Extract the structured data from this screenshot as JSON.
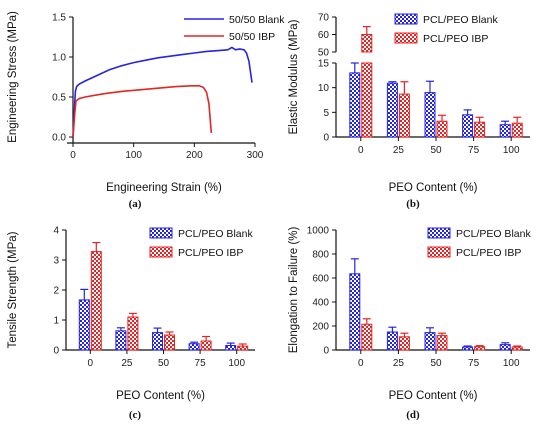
{
  "colors": {
    "blank": "#2424e6",
    "ibp": "#e62424",
    "axis": "#111111"
  },
  "chart_data": [
    {
      "id": "a",
      "type": "line",
      "panel_label": "(a)",
      "xlabel": "Engineering Strain (%)",
      "ylabel": "Engineering Stress (MPa)",
      "xlim": [
        0,
        300
      ],
      "ylim": [
        0,
        1.5
      ],
      "xticks": [
        0,
        100,
        200,
        300
      ],
      "yticks": [
        0.0,
        0.5,
        1.0,
        1.5
      ],
      "ytick_labels": [
        "0.0",
        "0.5",
        "1.0",
        "1.5"
      ],
      "legend_position": "top-right",
      "series": [
        {
          "name": "50/50 Blank",
          "color": "blank",
          "points": [
            [
              0,
              0
            ],
            [
              2,
              0.3
            ],
            [
              4,
              0.57
            ],
            [
              6,
              0.63
            ],
            [
              10,
              0.66
            ],
            [
              20,
              0.7
            ],
            [
              40,
              0.77
            ],
            [
              60,
              0.84
            ],
            [
              80,
              0.89
            ],
            [
              100,
              0.93
            ],
            [
              120,
              0.96
            ],
            [
              140,
              0.99
            ],
            [
              160,
              1.01
            ],
            [
              180,
              1.03
            ],
            [
              200,
              1.05
            ],
            [
              220,
              1.07
            ],
            [
              240,
              1.08
            ],
            [
              255,
              1.09
            ],
            [
              262,
              1.12
            ],
            [
              268,
              1.09
            ],
            [
              275,
              1.1
            ],
            [
              282,
              1.09
            ],
            [
              286,
              1.05
            ],
            [
              290,
              0.95
            ],
            [
              295,
              0.68
            ]
          ]
        },
        {
          "name": "50/50 IBP",
          "color": "ibp",
          "points": [
            [
              0,
              0.0
            ],
            [
              3,
              0.3
            ],
            [
              5,
              0.45
            ],
            [
              10,
              0.48
            ],
            [
              20,
              0.5
            ],
            [
              50,
              0.54
            ],
            [
              80,
              0.57
            ],
            [
              110,
              0.59
            ],
            [
              140,
              0.61
            ],
            [
              170,
              0.63
            ],
            [
              195,
              0.64
            ],
            [
              208,
              0.64
            ],
            [
              215,
              0.62
            ],
            [
              220,
              0.56
            ],
            [
              224,
              0.42
            ],
            [
              228,
              0.05
            ]
          ]
        }
      ]
    },
    {
      "id": "b",
      "type": "bar",
      "panel_label": "(b)",
      "xlabel": "PEO Content (%)",
      "ylabel": "Elastic Modulus (MPa)",
      "categories": [
        "0",
        "25",
        "50",
        "75",
        "100"
      ],
      "broken_axis": {
        "lower": [
          0,
          15
        ],
        "upper": [
          50,
          70
        ]
      },
      "yticks_lower": [
        0,
        5,
        10,
        15
      ],
      "yticks_upper": [
        50,
        60,
        70
      ],
      "legend_position": "top-right",
      "series": [
        {
          "name": "PCL/PEO Blank",
          "color": "blank",
          "values": [
            13,
            10.9,
            9,
            4.5,
            2.5
          ],
          "errors": [
            2,
            0.3,
            2.3,
            1,
            0.7
          ]
        },
        {
          "name": "PCL/PEO IBP",
          "color": "ibp",
          "values": [
            60,
            8.7,
            3.2,
            3,
            2.8
          ],
          "errors": [
            4.5,
            2.5,
            1.2,
            1,
            1.2
          ]
        }
      ]
    },
    {
      "id": "c",
      "type": "bar",
      "panel_label": "(c)",
      "xlabel": "PEO Content (%)",
      "ylabel": "Tensile Strength (MPa)",
      "categories": [
        "0",
        "25",
        "50",
        "75",
        "100"
      ],
      "ylim": [
        0,
        4
      ],
      "yticks": [
        0,
        1,
        2,
        3,
        4
      ],
      "legend_position": "top-right",
      "series": [
        {
          "name": "PCL/PEO Blank",
          "color": "blank",
          "values": [
            1.67,
            0.64,
            0.58,
            0.21,
            0.15
          ],
          "errors": [
            0.35,
            0.1,
            0.15,
            0.05,
            0.08
          ]
        },
        {
          "name": "PCL/PEO IBP",
          "color": "ibp",
          "values": [
            3.28,
            1.1,
            0.5,
            0.3,
            0.13
          ],
          "errors": [
            0.3,
            0.12,
            0.1,
            0.15,
            0.07
          ]
        }
      ]
    },
    {
      "id": "d",
      "type": "bar",
      "panel_label": "(d)",
      "xlabel": "PEO Content (%)",
      "ylabel": "Elongation to Failure (%)",
      "categories": [
        "0",
        "25",
        "50",
        "75",
        "100"
      ],
      "ylim": [
        0,
        1000
      ],
      "yticks": [
        0,
        200,
        400,
        600,
        800,
        1000
      ],
      "legend_position": "top-right",
      "series": [
        {
          "name": "PCL/PEO Blank",
          "color": "blank",
          "values": [
            635,
            150,
            145,
            25,
            45
          ],
          "errors": [
            125,
            40,
            40,
            8,
            15
          ]
        },
        {
          "name": "PCL/PEO IBP",
          "color": "ibp",
          "values": [
            215,
            110,
            120,
            28,
            25
          ],
          "errors": [
            45,
            30,
            20,
            8,
            8
          ]
        }
      ]
    }
  ]
}
